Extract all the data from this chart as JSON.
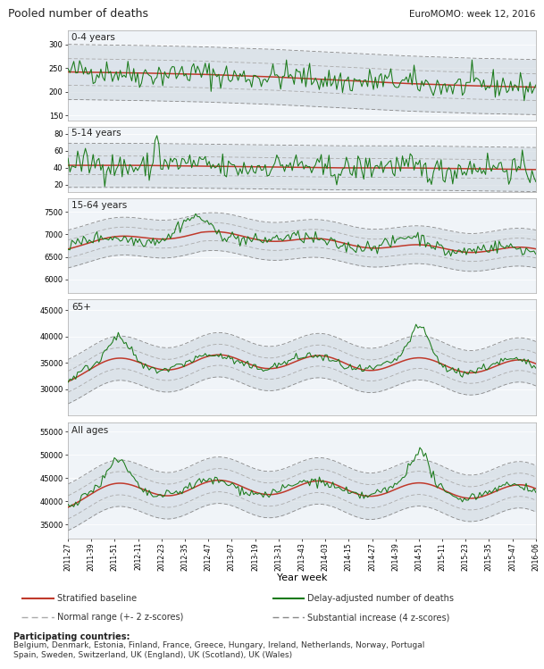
{
  "title": "Pooled number of deaths",
  "subtitle": "EuroMOMO: week 12, 2016",
  "xlabel": "Year week",
  "title_bg": "#dde8f0",
  "panel_bg": "#f0f4f8",
  "green_color": "#1a7a1a",
  "red_color": "#c0392b",
  "dashed_gray2": "#aaaaaa",
  "dashed_gray4": "#888888",
  "panels": [
    {
      "label": "0-4 years",
      "ylim": [
        140,
        330
      ],
      "yticks": [
        150,
        200,
        250,
        300
      ]
    },
    {
      "label": "5-14 years",
      "ylim": [
        12,
        88
      ],
      "yticks": [
        20,
        40,
        60,
        80
      ]
    },
    {
      "label": "15-64 years",
      "ylim": [
        5700,
        7800
      ],
      "yticks": [
        6000,
        6500,
        7000,
        7500
      ]
    },
    {
      "label": "65+",
      "ylim": [
        25000,
        47000
      ],
      "yticks": [
        30000,
        35000,
        40000,
        45000
      ]
    },
    {
      "label": "All ages",
      "ylim": [
        32000,
        57000
      ],
      "yticks": [
        35000,
        40000,
        45000,
        50000,
        55000
      ]
    }
  ],
  "xtick_labels": [
    "2011-27",
    "2011-39",
    "2011-51",
    "2012-11",
    "2012-23",
    "2012-35",
    "2012-47",
    "2013-07",
    "2013-19",
    "2013-31",
    "2013-43",
    "2014-03",
    "2014-15",
    "2014-27",
    "2014-39",
    "2014-51",
    "2015-11",
    "2015-23",
    "2015-35",
    "2015-47",
    "2016-06"
  ],
  "participating_countries_bold": "Participating countries:",
  "participating_countries": "Belgium, Denmark, Estonia, Finland, France, Greece, Hungary, Ireland, Netherlands, Norway, Portugal\nSpain, Sweden, Switzerland, UK (England), UK (Scotland), UK (Wales)"
}
